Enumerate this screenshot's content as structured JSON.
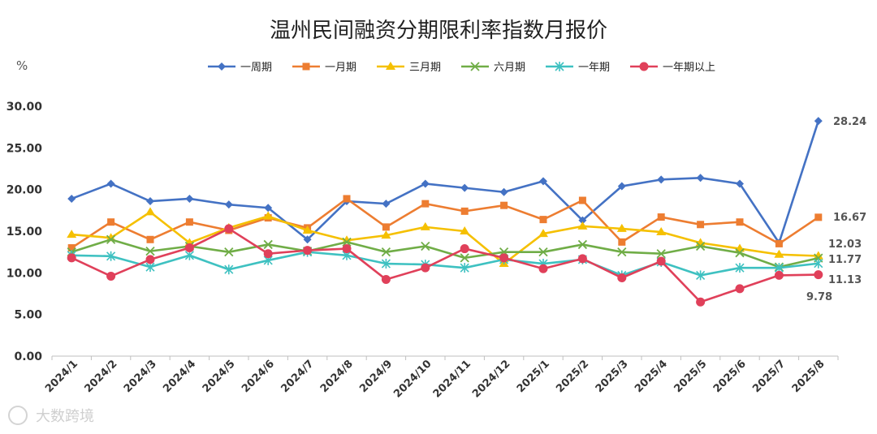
{
  "chart_data": {
    "type": "line",
    "title": "温州民间融资分期限利率指数月报价",
    "unit": "%",
    "ylim": [
      0,
      30
    ],
    "yticks": [
      "0.00",
      "5.00",
      "10.00",
      "15.00",
      "20.00",
      "25.00",
      "30.00"
    ],
    "grid": false,
    "legend_position": "top",
    "categories": [
      "2024/1",
      "2024/2",
      "2024/3",
      "2024/4",
      "2024/5",
      "2024/6",
      "2024/7",
      "2024/8",
      "2024/9",
      "2024/10",
      "2024/11",
      "2024/12",
      "2025/1",
      "2025/2",
      "2025/3",
      "2025/4",
      "2025/5",
      "2025/6",
      "2025/7",
      "2025/8"
    ],
    "series": [
      {
        "name": "一周期",
        "color": "#4472C4",
        "marker": "diamond",
        "values": [
          18.9,
          20.7,
          18.6,
          18.9,
          18.2,
          17.8,
          14.0,
          18.6,
          18.3,
          20.7,
          20.2,
          19.7,
          21.0,
          16.3,
          20.4,
          21.2,
          21.4,
          20.7,
          13.6,
          28.24
        ],
        "end_label": "28.24"
      },
      {
        "name": "一月期",
        "color": "#ED7D31",
        "marker": "square",
        "values": [
          13.0,
          16.1,
          14.0,
          16.1,
          15.1,
          16.6,
          15.4,
          18.9,
          15.5,
          18.3,
          17.4,
          18.1,
          16.4,
          18.7,
          13.7,
          16.7,
          15.8,
          16.1,
          13.5,
          16.67
        ],
        "end_label": "16.67"
      },
      {
        "name": "三月期",
        "color": "#F5C000",
        "marker": "triangle",
        "values": [
          14.6,
          14.2,
          17.3,
          13.6,
          15.4,
          16.8,
          15.1,
          13.9,
          14.5,
          15.5,
          15.0,
          11.1,
          14.7,
          15.6,
          15.3,
          14.9,
          13.6,
          12.9,
          12.2,
          12.03
        ],
        "end_label": "12.03"
      },
      {
        "name": "六月期",
        "color": "#70AD47",
        "marker": "x",
        "values": [
          12.5,
          14.0,
          12.6,
          13.2,
          12.5,
          13.4,
          12.6,
          13.7,
          12.5,
          13.2,
          11.8,
          12.5,
          12.5,
          13.4,
          12.5,
          12.3,
          13.2,
          12.4,
          10.7,
          11.77
        ],
        "end_label": "11.77"
      },
      {
        "name": "一年期",
        "color": "#3EC1C1",
        "marker": "asterisk",
        "values": [
          12.1,
          12.0,
          10.7,
          12.1,
          10.4,
          11.5,
          12.5,
          12.1,
          11.1,
          11.0,
          10.6,
          11.6,
          11.1,
          11.6,
          9.7,
          11.3,
          9.7,
          10.6,
          10.6,
          11.13
        ],
        "end_label": "11.13"
      },
      {
        "name": "一年期以上",
        "color": "#E0405A",
        "marker": "circle",
        "values": [
          11.8,
          9.6,
          11.6,
          13.0,
          15.3,
          12.3,
          12.7,
          12.9,
          9.2,
          10.6,
          12.9,
          11.8,
          10.5,
          11.7,
          9.4,
          11.4,
          6.5,
          8.1,
          9.7,
          9.78
        ],
        "end_label": "9.78"
      }
    ]
  },
  "watermark": "大数跨境"
}
